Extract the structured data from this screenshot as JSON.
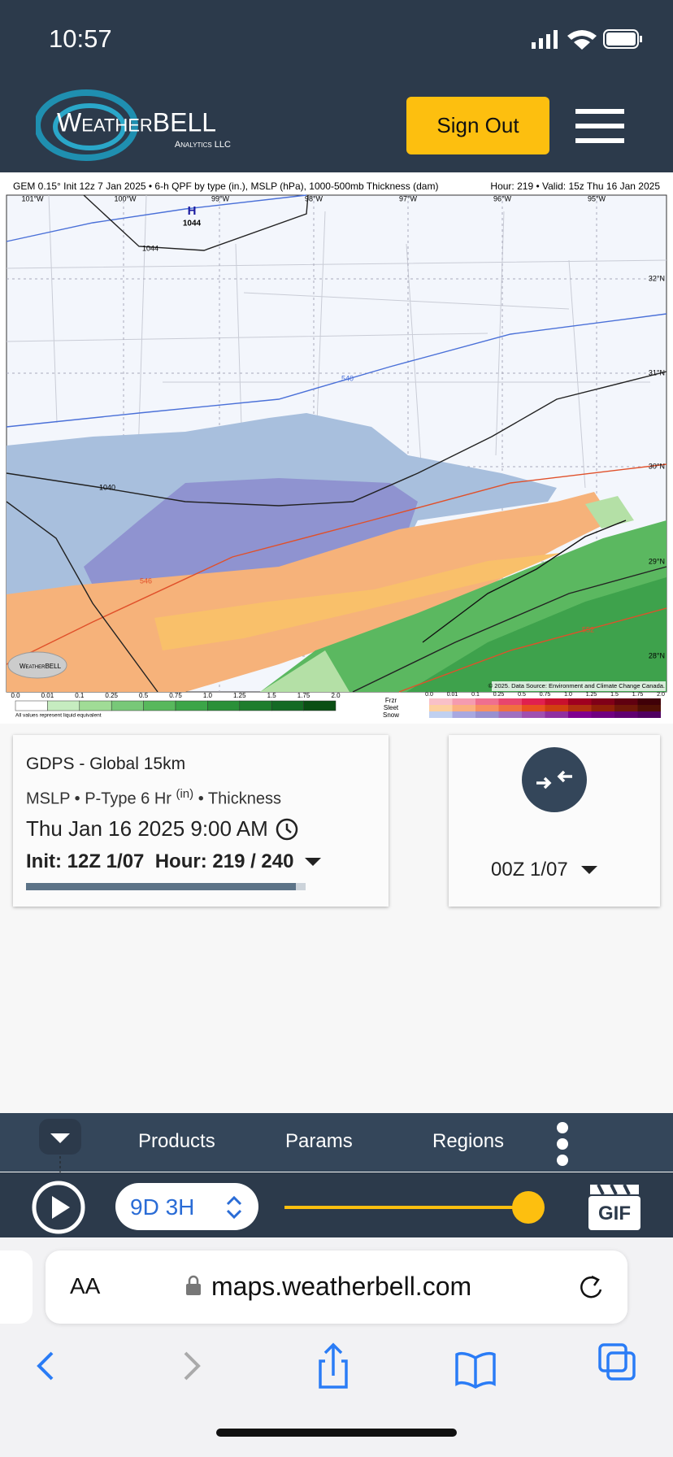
{
  "status_bar": {
    "time": "10:57"
  },
  "header": {
    "logo_main": "WeatherBELL",
    "logo_sub": "Analytics LLC",
    "sign_out": "Sign Out"
  },
  "map": {
    "title_left": "GEM 0.15° Init 12z 7 Jan 2025 • 6-h QPF by type (in.), MSLP (hPa), 1000-500mb Thickness (dam)",
    "title_right": "Hour: 219 • Valid: 15z Thu 16 Jan 2025",
    "longitudes": [
      "101°W",
      "100°W",
      "99°W",
      "98°W",
      "97°W",
      "96°W",
      "95°W"
    ],
    "latitudes": [
      "32°N",
      "31°N",
      "30°N",
      "29°N",
      "28°N"
    ],
    "high_label": "H",
    "high_pressure": "1044",
    "contour_labels": [
      "1044",
      "1040",
      "540",
      "546",
      "552"
    ],
    "watermark": "WeatherBELL",
    "copyright": "© 2025. Data Source: Environment and Climate Change Canada.",
    "qpf_ticks": [
      "0.0",
      "0.01",
      "0.1",
      "0.25",
      "0.5",
      "0.75",
      "1.0",
      "1.25",
      "1.5",
      "1.75",
      "2.0"
    ],
    "qpf_note": "All values represent liquid equivalent",
    "ptype_labels": [
      "Frzr",
      "Sleet",
      "Snow"
    ],
    "ptype_ticks": [
      "0.0",
      "0.01",
      "0.1",
      "0.25",
      "0.5",
      "0.75",
      "1.0",
      "1.25",
      "1.5",
      "1.75",
      "2.0"
    ]
  },
  "card": {
    "model": "GDPS - Global 15km",
    "params": "MSLP • P-Type 6 Hr",
    "params_unit": "(in)",
    "params_tail": "• Thickness",
    "valid": "Thu Jan 16 2025 9:00 AM",
    "run": "Init: 12Z 1/07  Hour: 219 / 240",
    "compare_run": "00Z 1/07"
  },
  "toolbar": {
    "products": "Products",
    "params": "Params",
    "regions": "Regions",
    "step": "9D 3H",
    "gif": "GIF"
  },
  "browser": {
    "text_size": "AA",
    "url": "maps.weatherbell.com"
  }
}
